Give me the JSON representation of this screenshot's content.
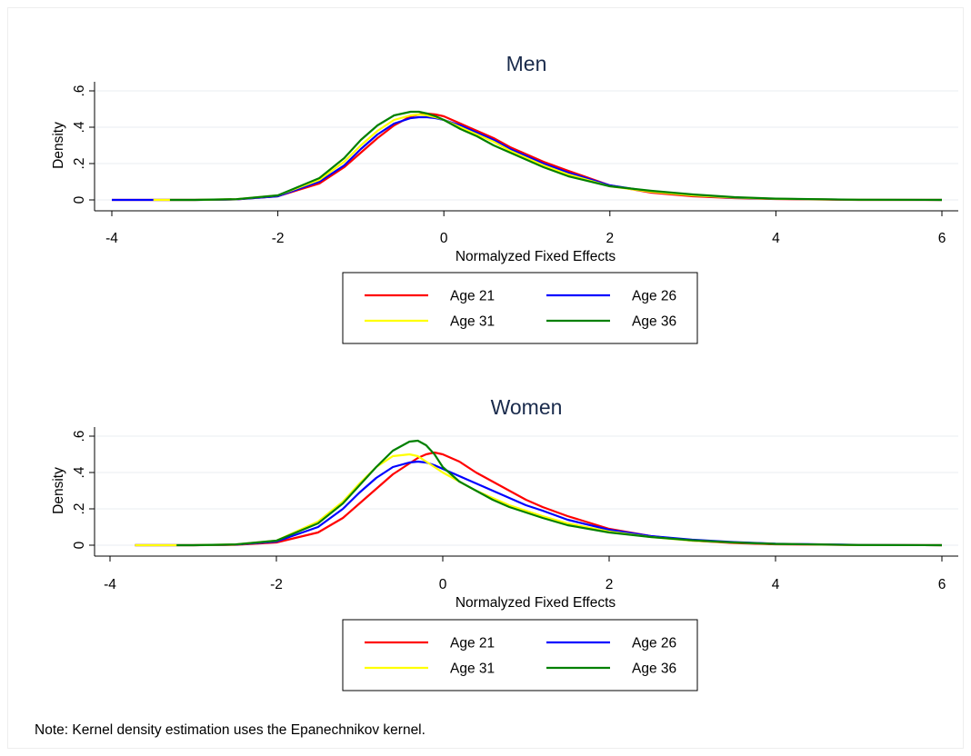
{
  "note": "Note: Kernel density estimation uses the Epanechnikov kernel.",
  "chart_data": [
    {
      "type": "line",
      "title": "Men",
      "xlabel": "Normalyzed Fixed Effects",
      "ylabel": "Density",
      "xlim": [
        -4,
        6
      ],
      "ylim": [
        0,
        0.6
      ],
      "xticks": [
        "-4",
        "-2",
        "0",
        "2",
        "4",
        "6"
      ],
      "yticks": [
        "0",
        ".2",
        ".4",
        ".6"
      ],
      "grid": true,
      "legend_position": "bottom",
      "series": [
        {
          "name": "Age 21",
          "color": "#ff0000",
          "x": [
            -4,
            -3,
            -2.5,
            -2,
            -1.5,
            -1.2,
            -1,
            -0.8,
            -0.6,
            -0.4,
            -0.3,
            -0.2,
            -0.1,
            0,
            0.2,
            0.4,
            0.6,
            0.8,
            1,
            1.2,
            1.5,
            2,
            2.5,
            3,
            3.5,
            4,
            5,
            6
          ],
          "y": [
            0,
            0,
            0.003,
            0.02,
            0.09,
            0.18,
            0.26,
            0.34,
            0.41,
            0.46,
            0.47,
            0.475,
            0.47,
            0.46,
            0.42,
            0.38,
            0.34,
            0.29,
            0.25,
            0.21,
            0.16,
            0.08,
            0.04,
            0.02,
            0.01,
            0.005,
            0,
            0
          ]
        },
        {
          "name": "Age 26",
          "color": "#0000ff",
          "x": [
            -4,
            -3,
            -2.5,
            -2,
            -1.5,
            -1.2,
            -1,
            -0.8,
            -0.6,
            -0.4,
            -0.3,
            -0.2,
            -0.1,
            0,
            0.2,
            0.4,
            0.6,
            0.8,
            1,
            1.2,
            1.5,
            2,
            2.5,
            3,
            3.5,
            4,
            5,
            6
          ],
          "y": [
            0,
            0,
            0.003,
            0.02,
            0.1,
            0.19,
            0.28,
            0.36,
            0.42,
            0.45,
            0.455,
            0.455,
            0.45,
            0.44,
            0.41,
            0.37,
            0.33,
            0.28,
            0.24,
            0.2,
            0.15,
            0.08,
            0.045,
            0.025,
            0.012,
            0.006,
            0.001,
            0
          ]
        },
        {
          "name": "Age 31",
          "color": "#ffff00",
          "x": [
            -3.5,
            -3,
            -2.5,
            -2,
            -1.5,
            -1.2,
            -1,
            -0.8,
            -0.6,
            -0.4,
            -0.3,
            -0.2,
            -0.1,
            0,
            0.2,
            0.4,
            0.6,
            0.8,
            1,
            1.2,
            1.5,
            2,
            2.5,
            3,
            3.5,
            4,
            5,
            6
          ],
          "y": [
            0,
            0,
            0.004,
            0.025,
            0.11,
            0.21,
            0.3,
            0.38,
            0.44,
            0.465,
            0.47,
            0.465,
            0.455,
            0.44,
            0.4,
            0.36,
            0.32,
            0.27,
            0.23,
            0.19,
            0.14,
            0.075,
            0.045,
            0.025,
            0.013,
            0.006,
            0.001,
            0
          ]
        },
        {
          "name": "Age 36",
          "color": "#008000",
          "x": [
            -3.3,
            -3,
            -2.5,
            -2,
            -1.5,
            -1.2,
            -1,
            -0.8,
            -0.6,
            -0.4,
            -0.3,
            -0.2,
            -0.1,
            0,
            0.2,
            0.4,
            0.6,
            0.8,
            1,
            1.2,
            1.5,
            2,
            2.5,
            3,
            3.5,
            4,
            5,
            6
          ],
          "y": [
            0,
            0,
            0.004,
            0.025,
            0.12,
            0.23,
            0.33,
            0.41,
            0.465,
            0.485,
            0.485,
            0.475,
            0.46,
            0.44,
            0.39,
            0.35,
            0.3,
            0.26,
            0.22,
            0.18,
            0.13,
            0.075,
            0.05,
            0.03,
            0.015,
            0.007,
            0.001,
            0
          ]
        }
      ]
    },
    {
      "type": "line",
      "title": "Women",
      "xlabel": "Normalyzed Fixed Effects",
      "ylabel": "Density",
      "xlim": [
        -4,
        6
      ],
      "ylim": [
        0,
        0.6
      ],
      "xticks": [
        "-4",
        "-2",
        "0",
        "2",
        "4",
        "6"
      ],
      "yticks": [
        "0",
        ".2",
        ".4",
        ".6"
      ],
      "grid": true,
      "legend_position": "bottom",
      "series": [
        {
          "name": "Age 21",
          "color": "#ff0000",
          "x": [
            -3.7,
            -3,
            -2.5,
            -2,
            -1.5,
            -1.2,
            -1,
            -0.8,
            -0.6,
            -0.4,
            -0.3,
            -0.2,
            -0.1,
            0,
            0.2,
            0.4,
            0.6,
            0.8,
            1,
            1.2,
            1.5,
            2,
            2.5,
            3,
            3.5,
            4,
            5,
            6
          ],
          "y": [
            0,
            0,
            0.002,
            0.015,
            0.07,
            0.15,
            0.23,
            0.31,
            0.39,
            0.45,
            0.48,
            0.5,
            0.51,
            0.5,
            0.46,
            0.4,
            0.35,
            0.3,
            0.25,
            0.21,
            0.16,
            0.09,
            0.05,
            0.025,
            0.012,
            0.005,
            0.001,
            0
          ]
        },
        {
          "name": "Age 26",
          "color": "#0000ff",
          "x": [
            -3.7,
            -3,
            -2.5,
            -2,
            -1.5,
            -1.2,
            -1,
            -0.8,
            -0.6,
            -0.4,
            -0.3,
            -0.2,
            -0.1,
            0,
            0.2,
            0.4,
            0.6,
            0.8,
            1,
            1.2,
            1.5,
            2,
            2.5,
            3,
            3.5,
            4,
            5,
            6
          ],
          "y": [
            0,
            0,
            0.003,
            0.02,
            0.1,
            0.2,
            0.29,
            0.37,
            0.43,
            0.455,
            0.46,
            0.455,
            0.44,
            0.42,
            0.38,
            0.34,
            0.3,
            0.26,
            0.22,
            0.19,
            0.14,
            0.085,
            0.05,
            0.03,
            0.017,
            0.008,
            0.002,
            0
          ]
        },
        {
          "name": "Age 31",
          "color": "#ffff00",
          "x": [
            -3.7,
            -3,
            -2.5,
            -2,
            -1.5,
            -1.2,
            -1,
            -0.8,
            -0.6,
            -0.4,
            -0.3,
            -0.2,
            -0.1,
            0,
            0.2,
            0.4,
            0.6,
            0.8,
            1,
            1.2,
            1.5,
            2,
            2.5,
            3,
            3.5,
            4,
            5,
            6
          ],
          "y": [
            0,
            0,
            0.004,
            0.025,
            0.13,
            0.24,
            0.34,
            0.43,
            0.49,
            0.5,
            0.49,
            0.46,
            0.43,
            0.4,
            0.35,
            0.3,
            0.26,
            0.22,
            0.19,
            0.16,
            0.12,
            0.075,
            0.045,
            0.025,
            0.014,
            0.007,
            0.001,
            0
          ]
        },
        {
          "name": "Age 36",
          "color": "#008000",
          "x": [
            -3.2,
            -3,
            -2.5,
            -2,
            -1.5,
            -1.2,
            -1,
            -0.8,
            -0.6,
            -0.4,
            -0.3,
            -0.2,
            -0.1,
            0,
            0.2,
            0.4,
            0.6,
            0.8,
            1,
            1.2,
            1.5,
            2,
            2.5,
            3,
            3.5,
            4,
            5,
            6
          ],
          "y": [
            0,
            0,
            0.004,
            0.025,
            0.12,
            0.23,
            0.33,
            0.43,
            0.52,
            0.57,
            0.575,
            0.55,
            0.5,
            0.43,
            0.35,
            0.3,
            0.25,
            0.21,
            0.18,
            0.15,
            0.11,
            0.07,
            0.045,
            0.027,
            0.015,
            0.007,
            0.001,
            0
          ]
        }
      ]
    }
  ]
}
